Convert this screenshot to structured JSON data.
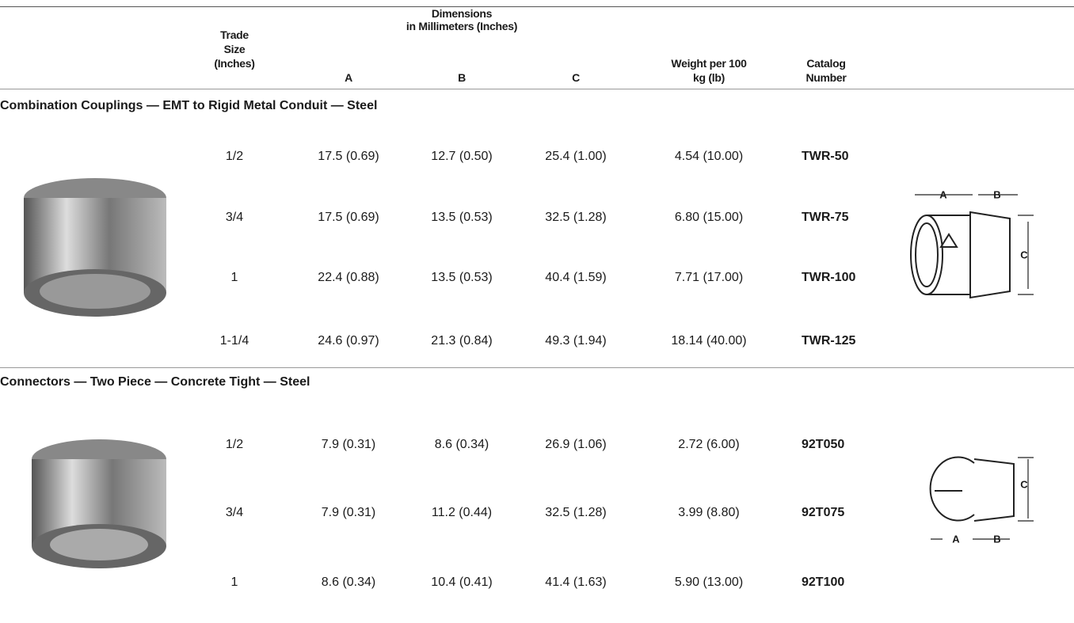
{
  "header": {
    "trade_size": [
      "Trade",
      "Size",
      "(Inches)"
    ],
    "dimensions": [
      "Dimensions",
      "in Millimeters (Inches)"
    ],
    "col_a": "A",
    "col_b": "B",
    "col_c": "C",
    "weight": [
      "Weight per 100",
      "kg (lb)"
    ],
    "catalog": [
      "Catalog",
      "Number"
    ]
  },
  "sections": [
    {
      "title": "Combination Couplings — EMT to Rigid Metal Conduit — Steel",
      "rows": [
        [
          "1/2",
          "17.5 (0.69)",
          "12.7 (0.50)",
          "25.4 (1.00)",
          "4.54 (10.00)",
          "TWR-50"
        ],
        [
          "3/4",
          "17.5 (0.69)",
          "13.5 (0.53)",
          "32.5 (1.28)",
          "6.80 (15.00)",
          "TWR-75"
        ],
        [
          "1",
          "22.4 (0.88)",
          "13.5 (0.53)",
          "40.4 (1.59)",
          "7.71 (17.00)",
          "TWR-100"
        ],
        [
          "1-1/4",
          "24.6 (0.97)",
          "21.3 (0.84)",
          "49.3 (1.94)",
          "18.14 (40.00)",
          "TWR-125"
        ]
      ],
      "diagram": [
        "A",
        "B",
        "C"
      ]
    },
    {
      "title": "Connectors — Two Piece — Concrete Tight — Steel",
      "rows": [
        [
          "1/2",
          "7.9 (0.31)",
          "8.6 (0.34)",
          "26.9 (1.06)",
          "2.72 (6.00)",
          "92T050"
        ],
        [
          "3/4",
          "7.9 (0.31)",
          "11.2 (0.44)",
          "32.5 (1.28)",
          "3.99 (8.80)",
          "92T075"
        ],
        [
          "1",
          "8.6 (0.34)",
          "10.4 (0.41)",
          "41.4 (1.63)",
          "5.90 (13.00)",
          "92T100"
        ]
      ],
      "diagram": [
        "C",
        "A",
        "B"
      ]
    }
  ]
}
